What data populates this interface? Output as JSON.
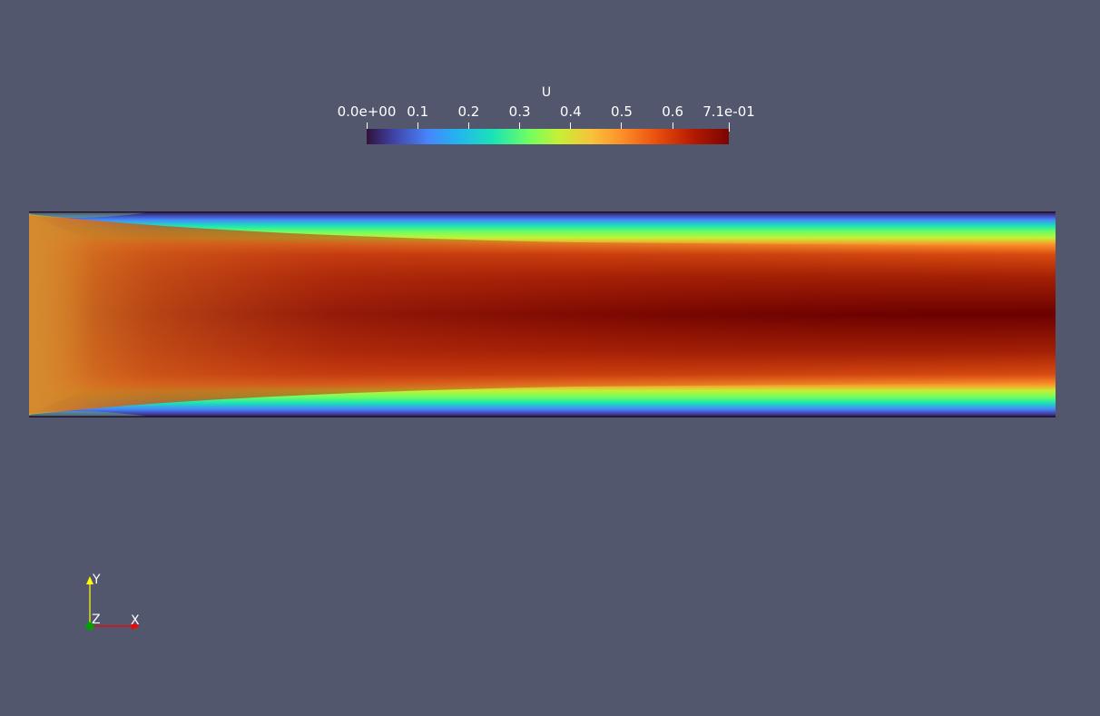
{
  "scalar_bar": {
    "title": "U",
    "colormap": "turbo",
    "range": [
      0.0,
      0.71
    ],
    "ticks": [
      {
        "value": 0.0,
        "label": "0.0e+00"
      },
      {
        "value": 0.1,
        "label": "0.1"
      },
      {
        "value": 0.2,
        "label": "0.2"
      },
      {
        "value": 0.3,
        "label": "0.3"
      },
      {
        "value": 0.4,
        "label": "0.4"
      },
      {
        "value": 0.5,
        "label": "0.5"
      },
      {
        "value": 0.6,
        "label": "0.6"
      },
      {
        "value": 0.71,
        "label": "7.1e-01"
      }
    ]
  },
  "axes": {
    "x_label": "X",
    "y_label": "Y",
    "z_label": "Z",
    "x_color": "#ff0000",
    "y_color": "#ffff00",
    "z_color": "#00a000"
  },
  "colors": {
    "background": "#52576e",
    "wall": "#30123b",
    "core_inlet": "#d28c2d",
    "core_outlet": "#6b0000"
  }
}
